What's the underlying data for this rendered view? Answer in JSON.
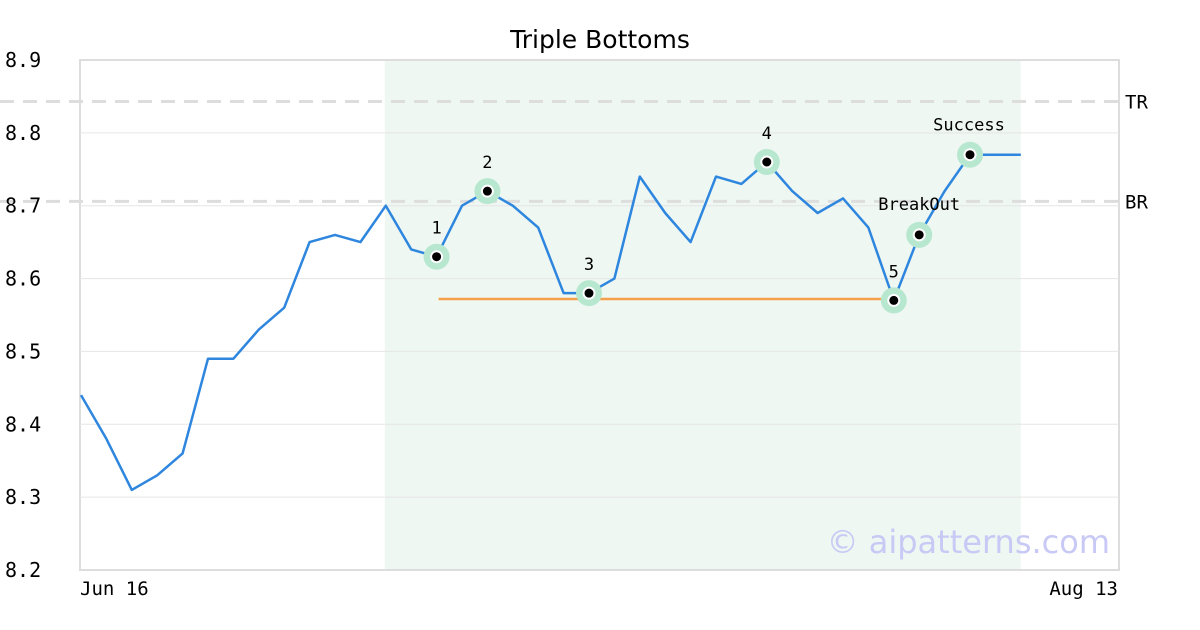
{
  "chart_data": {
    "type": "line",
    "title": "Triple Bottoms",
    "watermark": "© aipatterns.com",
    "xlabel": "",
    "ylabel": "",
    "ylim": [
      8.2,
      8.9
    ],
    "yticks": [
      "8.9",
      "8.8",
      "8.7",
      "8.6",
      "8.5",
      "8.4",
      "8.3",
      "8.2"
    ],
    "xtick_labels": {
      "start": "Jun 16",
      "end": "Aug 13"
    },
    "grid": true,
    "colors": {
      "series": "#2e86de",
      "support": "#f5a04a",
      "highlight": "#eef7f2",
      "marker": "#b7e8cf",
      "refline": "#dddddd"
    },
    "series": [
      {
        "values": [
          8.44,
          8.38,
          8.31,
          8.33,
          8.36,
          8.49,
          8.49,
          8.53,
          8.56,
          8.65,
          8.66,
          8.65,
          8.7,
          8.64,
          8.63,
          8.7,
          8.72,
          8.7,
          8.67,
          8.58,
          8.58,
          8.6,
          8.74,
          8.69,
          8.65,
          8.74,
          8.73,
          8.76,
          8.72,
          8.69,
          8.71,
          8.67,
          8.57,
          8.66,
          8.72,
          8.77,
          8.77,
          8.77
        ]
      }
    ],
    "highlight_range": [
      12,
      37
    ],
    "reference_lines": [
      {
        "label": "TR",
        "value": 8.843
      },
      {
        "label": "BR",
        "value": 8.706
      }
    ],
    "support_line": {
      "from": 14,
      "to": 32,
      "value": 8.572
    },
    "points": [
      {
        "label": "1",
        "index": 14,
        "value": 8.63
      },
      {
        "label": "2",
        "index": 16,
        "value": 8.72
      },
      {
        "label": "3",
        "index": 20,
        "value": 8.58
      },
      {
        "label": "4",
        "index": 27,
        "value": 8.76
      },
      {
        "label": "5",
        "index": 32,
        "value": 8.57
      },
      {
        "label": "BreakOut",
        "index": 33,
        "value": 8.66
      },
      {
        "label": "Success",
        "index": 35,
        "value": 8.77
      }
    ]
  }
}
